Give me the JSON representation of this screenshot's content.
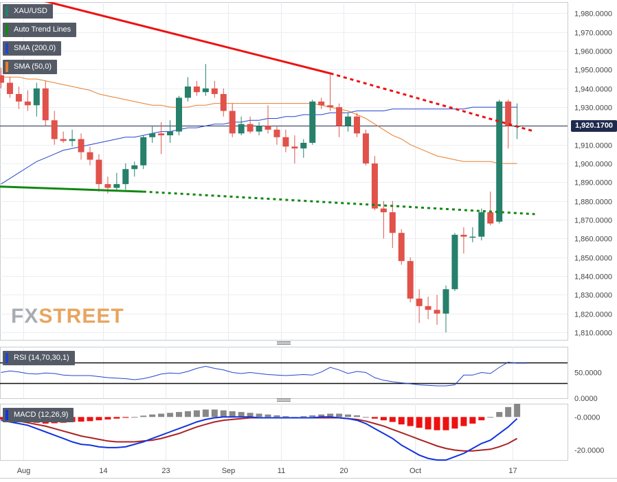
{
  "legend": {
    "symbol": "XAU/USD",
    "trend": "Auto Trend Lines",
    "sma200": "SMA (200,0)",
    "sma50": "SMA (50,0)"
  },
  "panels": {
    "rsi_label": "RSI (14,70,30,1)",
    "macd_label": "MACD (12,26,9)"
  },
  "watermark": {
    "fx": "FX",
    "street": "STREET"
  },
  "current_price": {
    "label": "1,920.1700",
    "value": 1920.17
  },
  "colors": {
    "bull": "#26806b",
    "bear": "#e0524a",
    "sma200": "#2244cc",
    "sma50": "#e87d2a",
    "trend_red": "#ee1111",
    "trend_green": "#118811",
    "macd_blue": "#1133dd",
    "signal": "#aa2222",
    "hist_pos": "#888888",
    "hist_neg": "#ee1111"
  },
  "chart_data": {
    "type": "candlestick",
    "title": "XAU/USD",
    "x_labels": [
      "Aug",
      "14",
      "23",
      "Sep",
      "11",
      "20",
      "Oct",
      "17"
    ],
    "price_axis": {
      "ticks": [
        "1,980.0000",
        "1,970.0000",
        "1,960.0000",
        "1,950.0000",
        "1,940.0000",
        "1,930.0000",
        "1,920.0000",
        "1,910.0000",
        "1,900.0000",
        "1,890.0000",
        "1,880.0000",
        "1,870.0000",
        "1,860.0000",
        "1,850.0000",
        "1,840.0000",
        "1,830.0000",
        "1,820.0000",
        "1,810.0000"
      ],
      "ylim": [
        1806,
        1986
      ]
    },
    "candles": [
      {
        "o": 1947,
        "h": 1951,
        "l": 1940,
        "c": 1943
      },
      {
        "o": 1943,
        "h": 1946,
        "l": 1935,
        "c": 1937
      },
      {
        "o": 1937,
        "h": 1941,
        "l": 1929,
        "c": 1933
      },
      {
        "o": 1933,
        "h": 1939,
        "l": 1928,
        "c": 1931
      },
      {
        "o": 1931,
        "h": 1943,
        "l": 1925,
        "c": 1940
      },
      {
        "o": 1940,
        "h": 1944,
        "l": 1920,
        "c": 1923
      },
      {
        "o": 1923,
        "h": 1928,
        "l": 1910,
        "c": 1913
      },
      {
        "o": 1913,
        "h": 1917,
        "l": 1911,
        "c": 1912
      },
      {
        "o": 1912,
        "h": 1918,
        "l": 1909,
        "c": 1913
      },
      {
        "o": 1913,
        "h": 1916,
        "l": 1902,
        "c": 1906
      },
      {
        "o": 1906,
        "h": 1909,
        "l": 1899,
        "c": 1902
      },
      {
        "o": 1902,
        "h": 1905,
        "l": 1885,
        "c": 1889
      },
      {
        "o": 1889,
        "h": 1893,
        "l": 1884,
        "c": 1887
      },
      {
        "o": 1887,
        "h": 1895,
        "l": 1885,
        "c": 1889
      },
      {
        "o": 1889,
        "h": 1900,
        "l": 1886,
        "c": 1897
      },
      {
        "o": 1897,
        "h": 1901,
        "l": 1893,
        "c": 1899
      },
      {
        "o": 1899,
        "h": 1915,
        "l": 1897,
        "c": 1914
      },
      {
        "o": 1914,
        "h": 1920,
        "l": 1911,
        "c": 1916
      },
      {
        "o": 1916,
        "h": 1922,
        "l": 1905,
        "c": 1915
      },
      {
        "o": 1915,
        "h": 1923,
        "l": 1911,
        "c": 1917
      },
      {
        "o": 1917,
        "h": 1936,
        "l": 1915,
        "c": 1935
      },
      {
        "o": 1935,
        "h": 1946,
        "l": 1933,
        "c": 1941
      },
      {
        "o": 1941,
        "h": 1944,
        "l": 1936,
        "c": 1938
      },
      {
        "o": 1938,
        "h": 1953,
        "l": 1936,
        "c": 1940
      },
      {
        "o": 1940,
        "h": 1944,
        "l": 1935,
        "c": 1937
      },
      {
        "o": 1937,
        "h": 1940,
        "l": 1925,
        "c": 1928
      },
      {
        "o": 1928,
        "h": 1932,
        "l": 1914,
        "c": 1916
      },
      {
        "o": 1916,
        "h": 1925,
        "l": 1915,
        "c": 1921
      },
      {
        "o": 1921,
        "h": 1925,
        "l": 1916,
        "c": 1917
      },
      {
        "o": 1917,
        "h": 1922,
        "l": 1915,
        "c": 1920
      },
      {
        "o": 1920,
        "h": 1931,
        "l": 1916,
        "c": 1918
      },
      {
        "o": 1918,
        "h": 1920,
        "l": 1910,
        "c": 1914
      },
      {
        "o": 1914,
        "h": 1918,
        "l": 1906,
        "c": 1909
      },
      {
        "o": 1909,
        "h": 1915,
        "l": 1900,
        "c": 1908
      },
      {
        "o": 1908,
        "h": 1913,
        "l": 1903,
        "c": 1911
      },
      {
        "o": 1911,
        "h": 1934,
        "l": 1910,
        "c": 1933
      },
      {
        "o": 1933,
        "h": 1935,
        "l": 1929,
        "c": 1931
      },
      {
        "o": 1931,
        "h": 1948,
        "l": 1928,
        "c": 1930
      },
      {
        "o": 1930,
        "h": 1932,
        "l": 1914,
        "c": 1920
      },
      {
        "o": 1920,
        "h": 1927,
        "l": 1917,
        "c": 1925
      },
      {
        "o": 1925,
        "h": 1927,
        "l": 1914,
        "c": 1916
      },
      {
        "o": 1916,
        "h": 1918,
        "l": 1899,
        "c": 1900
      },
      {
        "o": 1900,
        "h": 1904,
        "l": 1875,
        "c": 1876
      },
      {
        "o": 1876,
        "h": 1880,
        "l": 1860,
        "c": 1874
      },
      {
        "o": 1874,
        "h": 1880,
        "l": 1855,
        "c": 1863
      },
      {
        "o": 1863,
        "h": 1865,
        "l": 1846,
        "c": 1848
      },
      {
        "o": 1848,
        "h": 1850,
        "l": 1826,
        "c": 1828
      },
      {
        "o": 1828,
        "h": 1833,
        "l": 1815,
        "c": 1824
      },
      {
        "o": 1824,
        "h": 1829,
        "l": 1817,
        "c": 1822
      },
      {
        "o": 1822,
        "h": 1830,
        "l": 1814,
        "c": 1820
      },
      {
        "o": 1820,
        "h": 1835,
        "l": 1810,
        "c": 1833
      },
      {
        "o": 1833,
        "h": 1863,
        "l": 1832,
        "c": 1862
      },
      {
        "o": 1862,
        "h": 1866,
        "l": 1852,
        "c": 1861
      },
      {
        "o": 1861,
        "h": 1866,
        "l": 1858,
        "c": 1861
      },
      {
        "o": 1861,
        "h": 1876,
        "l": 1859,
        "c": 1874
      },
      {
        "o": 1874,
        "h": 1885,
        "l": 1867,
        "c": 1868
      },
      {
        "o": 1869,
        "h": 1934,
        "l": 1868,
        "c": 1933
      },
      {
        "o": 1933,
        "h": 1934,
        "l": 1908,
        "c": 1920
      },
      {
        "o": 1920,
        "h": 1932,
        "l": 1913,
        "c": 1920
      }
    ],
    "sma50": [
      1946,
      1946,
      1946,
      1945,
      1945,
      1944,
      1943,
      1942,
      1941,
      1940,
      1939,
      1937,
      1936,
      1935,
      1934,
      1933,
      1932,
      1931,
      1931,
      1930,
      1930,
      1930,
      1931,
      1931,
      1932,
      1932,
      1932,
      1932,
      1932,
      1932,
      1932,
      1932,
      1932,
      1932,
      1932,
      1932,
      1931,
      1930,
      1929,
      1928,
      1926,
      1924,
      1921,
      1918,
      1915,
      1913,
      1910,
      1908,
      1906,
      1904,
      1903,
      1902,
      1901,
      1901,
      1901,
      1901,
      1900,
      1900,
      1900
    ],
    "sma200": [
      1889,
      1892,
      1895,
      1898,
      1901,
      1903,
      1905,
      1907,
      1908,
      1909,
      1910,
      1911,
      1912,
      1913,
      1914,
      1914,
      1915,
      1916,
      1917,
      1917,
      1918,
      1919,
      1919,
      1920,
      1921,
      1921,
      1922,
      1922,
      1923,
      1923,
      1924,
      1924,
      1925,
      1925,
      1926,
      1926,
      1926,
      1927,
      1927,
      1927,
      1928,
      1928,
      1928,
      1928,
      1929,
      1929,
      1929,
      1929,
      1929,
      1929,
      1929,
      1929,
      1929,
      1930,
      1930,
      1930,
      1930,
      1930,
      1930
    ],
    "trend_red": {
      "x": [
        -3,
        37,
        60
      ],
      "y": [
        1996,
        1948,
        1917
      ]
    },
    "trend_green": {
      "x": [
        -2,
        16,
        60
      ],
      "y": [
        1888,
        1885,
        1873
      ]
    },
    "rsi": {
      "axis_ticks": [
        "50.0000",
        "0.0000"
      ],
      "ylim": [
        0,
        100
      ],
      "levels": [
        70,
        30
      ],
      "values": [
        50,
        53,
        51,
        48,
        47,
        49,
        48,
        45,
        44,
        44,
        44,
        42,
        40,
        39,
        38,
        36,
        38,
        42,
        47,
        49,
        48,
        52,
        58,
        62,
        58,
        55,
        50,
        48,
        50,
        48,
        46,
        45,
        44,
        45,
        46,
        45,
        51,
        60,
        55,
        48,
        52,
        50,
        40,
        35,
        32,
        30,
        28,
        26,
        25,
        24,
        24,
        26,
        45,
        45,
        50,
        48,
        60,
        70,
        68,
        68
      ]
    },
    "macd": {
      "axis_ticks": [
        "-0.0000",
        "-20.0000"
      ],
      "ylim": [
        -26,
        8
      ],
      "hist": [
        -1.5,
        -2,
        -2.5,
        -3,
        -3.5,
        -4,
        -3.8,
        -3.5,
        -3,
        -2.8,
        -2.5,
        -2,
        -1.5,
        -1,
        -0.5,
        0,
        0.8,
        1.5,
        2,
        2.5,
        3,
        3.5,
        4,
        4.5,
        4.5,
        4,
        3.5,
        3,
        2.5,
        2,
        1.5,
        1,
        0.5,
        0,
        0.5,
        1,
        1.5,
        2,
        2,
        1.5,
        1,
        0,
        -1,
        -2,
        -3,
        -4.5,
        -5.5,
        -6.5,
        -7.5,
        -8,
        -8,
        -7,
        -5.5,
        -4,
        -2,
        0,
        3,
        6,
        8
      ],
      "macd": [
        -2,
        -3,
        -4,
        -5,
        -7,
        -9,
        -11,
        -13,
        -15,
        -16.5,
        -17,
        -18,
        -18.5,
        -18.5,
        -18,
        -16.5,
        -15,
        -13,
        -11,
        -9,
        -7,
        -5,
        -3,
        -1.5,
        -0.5,
        0,
        0,
        0,
        0,
        -0.5,
        -0.5,
        -0.5,
        -0.5,
        -0.5,
        -0.5,
        -0.5,
        0,
        0,
        -0.5,
        -1,
        -2,
        -4,
        -7,
        -10,
        -13,
        -17,
        -20,
        -23,
        -25,
        -26,
        -26,
        -24,
        -22,
        -19,
        -16,
        -14,
        -10,
        -6,
        -1
      ],
      "signal": [
        -1,
        -1.5,
        -2.5,
        -3.5,
        -4.5,
        -5.5,
        -7,
        -8.5,
        -10,
        -11.5,
        -12.5,
        -13.5,
        -14.5,
        -15,
        -15,
        -15,
        -14.5,
        -14,
        -13,
        -11.5,
        -10,
        -8,
        -6,
        -4.5,
        -3,
        -2,
        -1.5,
        -1,
        -0.5,
        -0.5,
        -0.5,
        -0.5,
        -0.5,
        -0.5,
        -0.5,
        -0.5,
        -0.5,
        -0.5,
        -0.5,
        -1,
        -1.5,
        -2.5,
        -4,
        -5.5,
        -7.5,
        -9.5,
        -11.5,
        -13.5,
        -15.5,
        -17.5,
        -19,
        -20,
        -20.5,
        -20.5,
        -20,
        -19.5,
        -18,
        -16,
        -13
      ]
    }
  }
}
